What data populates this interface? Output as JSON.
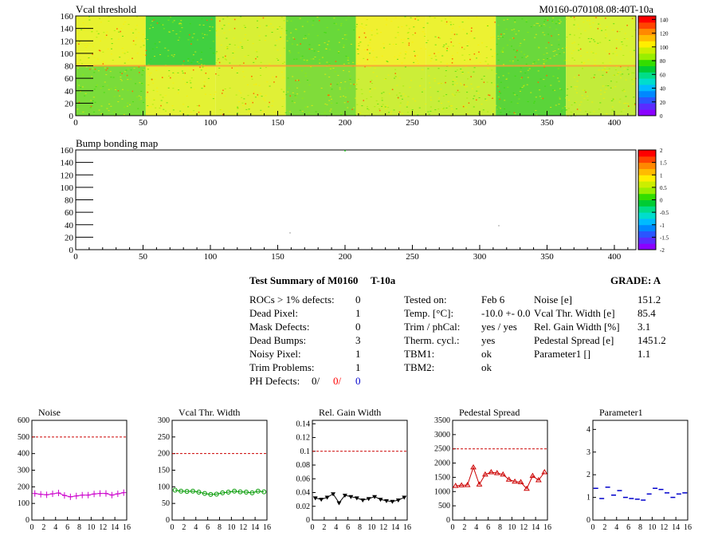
{
  "header": {
    "title_left": "Vcal threshold",
    "title_right": "M0160-070108.08:40T-10a"
  },
  "colors": {
    "red_text": "#ff0000",
    "blue_text": "#0000cc",
    "noise_color": "#cc00cc",
    "vcal_color": "#009900",
    "gain_color": "#000000",
    "ped_color": "#cc0000",
    "par_color": "#0000cc",
    "ref_line": "#cc0000"
  },
  "map1": {
    "title": "Vcal threshold",
    "x_ticks": [
      "0",
      "50",
      "100",
      "150",
      "200",
      "250",
      "300",
      "350",
      "400"
    ],
    "y_ticks": [
      "0",
      "20",
      "40",
      "60",
      "80",
      "100",
      "120",
      "140",
      "160"
    ],
    "palette_ticks": [
      "140",
      "120",
      "100",
      "80",
      "60",
      "40",
      "20",
      "0"
    ],
    "palette_range": [
      0,
      145
    ]
  },
  "map2": {
    "title": "Bump bonding map",
    "x_ticks": [
      "0",
      "50",
      "100",
      "150",
      "200",
      "250",
      "300",
      "350",
      "400"
    ],
    "y_ticks": [
      "0",
      "20",
      "40",
      "60",
      "80",
      "100",
      "120",
      "140",
      "160"
    ],
    "palette_ticks": [
      "2",
      "1.5",
      "1",
      "0.5",
      "0",
      "-0.5",
      "-1",
      "-1.5",
      "-2"
    ],
    "palette_range": [
      -2,
      2
    ]
  },
  "summary": {
    "heading": "Test Summary of M0160",
    "tag": "T-10a",
    "grade_label": "GRADE:  A",
    "left_rows": [
      {
        "label": "ROCs > 1% defects:",
        "value": "0"
      },
      {
        "label": "Dead Pixel:",
        "value": "1"
      },
      {
        "label": "Mask Defects:",
        "value": "0"
      },
      {
        "label": "Dead Bumps:",
        "value": "3"
      },
      {
        "label": "Noisy Pixel:",
        "value": "1"
      },
      {
        "label": "Trim Problems:",
        "value": "1"
      }
    ],
    "ph_label": "PH Defects:",
    "ph_values": [
      "0/",
      "0/",
      "0"
    ],
    "mid_rows": [
      {
        "label": "Tested on:",
        "value": "Feb 6"
      },
      {
        "label": "Temp. [°C]:",
        "value": "-10.0 +- 0.0"
      },
      {
        "label": "Trim / phCal:",
        "value": "yes / yes"
      },
      {
        "label": "Therm. cycl.:",
        "value": "yes"
      },
      {
        "label": "TBM1:",
        "value": "ok"
      },
      {
        "label": "TBM2:",
        "value": "ok"
      }
    ],
    "right_rows": [
      {
        "label": "Noise [e]",
        "value": "151.2"
      },
      {
        "label": "Vcal Thr. Width [e]",
        "value": "85.4"
      },
      {
        "label": "Rel. Gain Width [%]",
        "value": "3.1"
      },
      {
        "label": "Pedestal Spread [e]",
        "value": "1451.2"
      },
      {
        "label": "Parameter1 []",
        "value": "1.1"
      }
    ]
  },
  "chart_data": [
    {
      "type": "scatter",
      "title": "Noise",
      "x": [
        0,
        1,
        2,
        3,
        4,
        5,
        6,
        7,
        8,
        9,
        10,
        11,
        12,
        13,
        14,
        15
      ],
      "values": [
        160,
        155,
        152,
        158,
        163,
        148,
        140,
        145,
        150,
        150,
        157,
        160,
        160,
        150,
        158,
        165
      ],
      "xlim": [
        0,
        16
      ],
      "ylim": [
        0,
        600
      ],
      "x_ticks": [
        "0",
        "2",
        "4",
        "6",
        "8",
        "10",
        "12",
        "14",
        "16"
      ],
      "y_ticks": [
        "0",
        "100",
        "200",
        "300",
        "400",
        "500",
        "600"
      ],
      "ref_line": 500,
      "marker": "cross"
    },
    {
      "type": "line",
      "title": "Vcal Thr. Width",
      "x": [
        0,
        1,
        2,
        3,
        4,
        5,
        6,
        7,
        8,
        9,
        10,
        11,
        12,
        13,
        14,
        15
      ],
      "values": [
        90,
        87,
        86,
        87,
        84,
        80,
        77,
        78,
        82,
        84,
        87,
        85,
        84,
        82,
        87,
        85
      ],
      "xlim": [
        0,
        16
      ],
      "ylim": [
        0,
        300
      ],
      "x_ticks": [
        "0",
        "2",
        "4",
        "6",
        "8",
        "10",
        "12",
        "14",
        "16"
      ],
      "y_ticks": [
        "0",
        "50",
        "100",
        "150",
        "200",
        "250",
        "300"
      ],
      "ref_line": 200,
      "marker": "circle"
    },
    {
      "type": "line",
      "title": "Rel. Gain Width",
      "x": [
        0,
        1,
        2,
        3,
        4,
        5,
        6,
        7,
        8,
        9,
        10,
        11,
        12,
        13,
        14,
        15
      ],
      "values": [
        0.032,
        0.03,
        0.033,
        0.038,
        0.025,
        0.036,
        0.034,
        0.032,
        0.029,
        0.031,
        0.034,
        0.03,
        0.028,
        0.027,
        0.029,
        0.033
      ],
      "xlim": [
        0,
        16
      ],
      "ylim": [
        0,
        0.145
      ],
      "x_ticks": [
        "0",
        "2",
        "4",
        "6",
        "8",
        "10",
        "12",
        "14",
        "16"
      ],
      "y_ticks": [
        "0",
        "0.02",
        "0.04",
        "0.06",
        "0.08",
        "0.1",
        "0.12",
        "0.14"
      ],
      "ref_line": 0.1,
      "marker": "triangle-down"
    },
    {
      "type": "line",
      "title": "Pedestal Spread",
      "x": [
        0,
        1,
        2,
        3,
        4,
        5,
        6,
        7,
        8,
        9,
        10,
        11,
        12,
        13,
        14,
        15
      ],
      "values": [
        1200,
        1220,
        1230,
        1850,
        1250,
        1600,
        1680,
        1650,
        1600,
        1420,
        1350,
        1330,
        1100,
        1550,
        1400,
        1680
      ],
      "xlim": [
        0,
        16
      ],
      "ylim": [
        0,
        3500
      ],
      "x_ticks": [
        "0",
        "2",
        "4",
        "6",
        "8",
        "10",
        "12",
        "14",
        "16"
      ],
      "y_ticks": [
        "0",
        "500",
        "1000",
        "1500",
        "2000",
        "2500",
        "3000",
        "3500"
      ],
      "ref_line": 2500,
      "marker": "triangle-up"
    },
    {
      "type": "scatter",
      "title": "Parameter1",
      "x": [
        0,
        1,
        2,
        3,
        4,
        5,
        6,
        7,
        8,
        9,
        10,
        11,
        12,
        13,
        14,
        15
      ],
      "values": [
        1.4,
        0.95,
        1.45,
        1.1,
        1.3,
        1.0,
        0.95,
        0.92,
        0.88,
        1.15,
        1.4,
        1.35,
        1.2,
        1.0,
        1.15,
        1.2
      ],
      "xlim": [
        0,
        16
      ],
      "ylim": [
        0,
        4.4
      ],
      "x_ticks": [
        "0",
        "2",
        "4",
        "6",
        "8",
        "10",
        "12",
        "14",
        "16"
      ],
      "y_ticks": [
        "0",
        "1",
        "2",
        "3",
        "4"
      ],
      "marker": "dash"
    }
  ]
}
